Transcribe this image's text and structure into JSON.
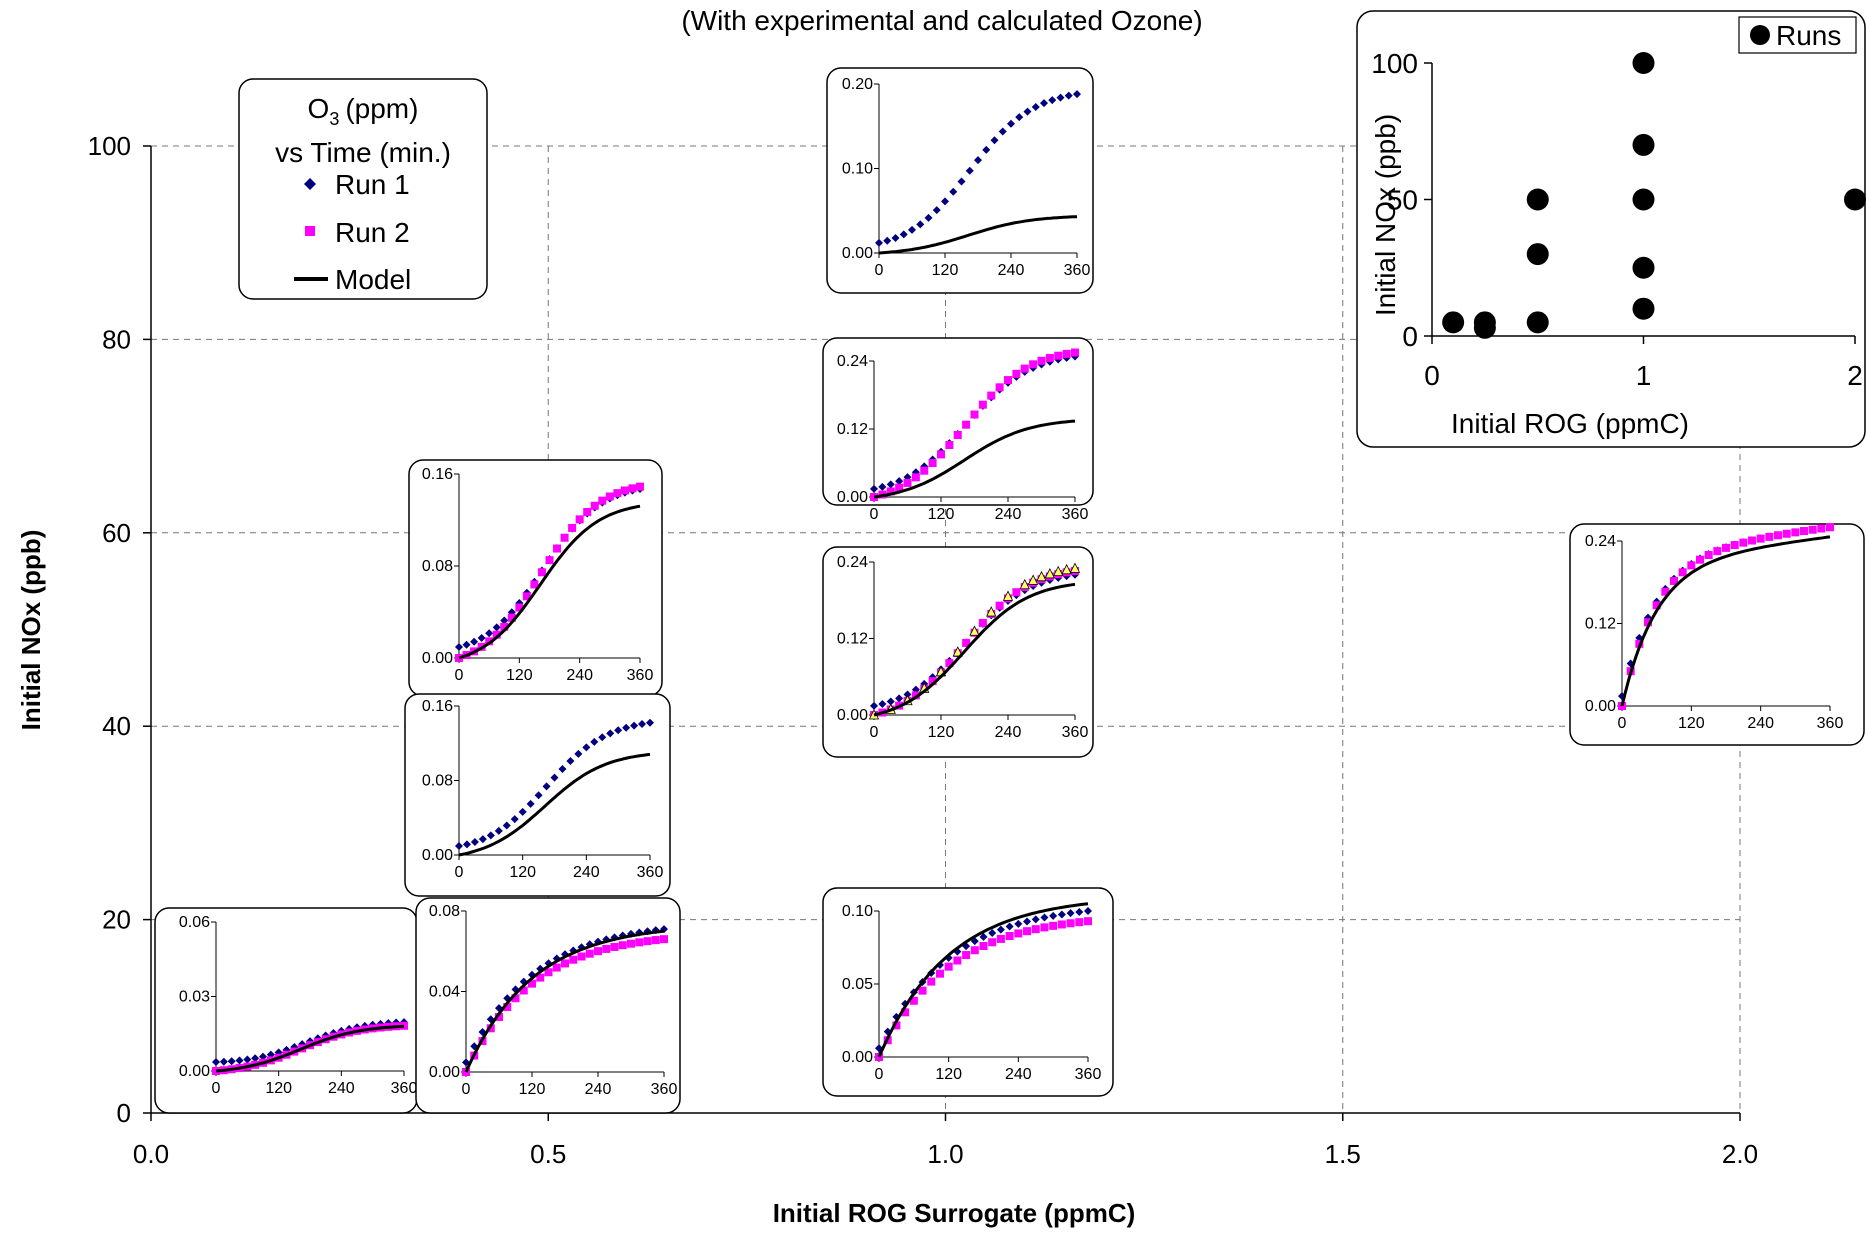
{
  "title": "(With experimental and calculated Ozone)",
  "legend": {
    "title_o3": "O",
    "title_sub": "3",
    "title_unit": "(ppm)",
    "title_line2": "vs Time (min.)",
    "entries": [
      {
        "name": "Run 1",
        "color": "#000080",
        "marker": "diamond"
      },
      {
        "name": "Run 2",
        "color": "#FF00FF",
        "marker": "square"
      },
      {
        "name": "Model",
        "color": "#000000",
        "marker": "line"
      }
    ]
  },
  "colors": {
    "run1": "#000080",
    "run2": "#FF00FF",
    "run3": "#FFFF66",
    "model": "#000000",
    "grid": "#777777"
  },
  "chart_data": [
    {
      "type": "scatter",
      "role": "main-experiment-grid",
      "xlabel": "Initial ROG Surrogate (ppmC)",
      "ylabel": "Initial NOx (ppb)",
      "xlim": [
        0,
        2
      ],
      "ylim": [
        0,
        100
      ],
      "xticks": [
        "0.0",
        "0.5",
        "1.0",
        "1.5",
        "2.0"
      ],
      "yticks": [
        "0",
        "20",
        "40",
        "60",
        "80",
        "100"
      ],
      "grid": true
    },
    {
      "type": "scatter",
      "role": "inset-runs",
      "xlabel": "Initial ROG (ppmC)",
      "ylabel": "Initial NOx (ppb)",
      "xlim": [
        0,
        2
      ],
      "ylim": [
        0,
        100
      ],
      "xticks": [
        "0",
        "1",
        "2"
      ],
      "yticks": [
        "0",
        "50",
        "100"
      ],
      "legend": "top-right",
      "series": [
        {
          "name": "Runs",
          "x": [
            0.1,
            0.25,
            0.25,
            0.5,
            0.5,
            0.5,
            1,
            1,
            1,
            1,
            1,
            2
          ],
          "y": [
            5,
            5,
            3,
            5,
            30,
            50,
            100,
            70,
            50,
            25,
            10,
            50
          ]
        }
      ]
    },
    {
      "type": "line",
      "role": "mini",
      "id": "m1",
      "xlim": [
        0,
        360
      ],
      "ylim": [
        0,
        0.06
      ],
      "xticks": [
        "0",
        "120",
        "240",
        "360"
      ],
      "yticks": [
        "0.00",
        "0.03",
        "0.06"
      ],
      "series": [
        {
          "name": "Run 1",
          "model_peak": 0.02,
          "shape": "sigmoid",
          "end": 0.0197
        },
        {
          "name": "Run 2",
          "shape": "sigmoid",
          "end": 0.0182
        },
        {
          "name": "Model",
          "shape": "sigmoid",
          "end": 0.018
        }
      ]
    },
    {
      "type": "line",
      "role": "mini",
      "id": "m2",
      "xlim": [
        0,
        360
      ],
      "ylim": [
        0,
        0.08
      ],
      "xticks": [
        "0",
        "120",
        "240",
        "360"
      ],
      "yticks": [
        "0.00",
        "0.04",
        "0.08"
      ],
      "series": [
        {
          "name": "Run 1",
          "shape": "saturating",
          "end": 0.071
        },
        {
          "name": "Run 2",
          "shape": "saturating",
          "end": 0.066
        },
        {
          "name": "Model",
          "shape": "saturating",
          "end": 0.07
        }
      ]
    },
    {
      "type": "line",
      "role": "mini",
      "id": "m3",
      "xlim": [
        0,
        360
      ],
      "ylim": [
        0,
        0.16
      ],
      "xticks": [
        "0",
        "120",
        "240",
        "360"
      ],
      "yticks": [
        "0.00",
        "0.08",
        "0.16"
      ],
      "series": [
        {
          "name": "Run 1",
          "shape": "sigmoid",
          "end": 0.147
        },
        {
          "name": "Run 2",
          "shape": "sigmoid",
          "end": 0.149
        },
        {
          "name": "Model",
          "shape": "sigmoid",
          "end": 0.132
        }
      ]
    },
    {
      "type": "line",
      "role": "mini",
      "id": "m4",
      "xlim": [
        0,
        360
      ],
      "ylim": [
        0,
        0.16
      ],
      "xticks": [
        "0",
        "120",
        "240",
        "360"
      ],
      "yticks": [
        "0.00",
        "0.08",
        "0.16"
      ],
      "series": [
        {
          "name": "Run 1",
          "shape": "sigmoid",
          "end": 0.142
        },
        {
          "name": "Model",
          "shape": "sigmoid",
          "end": 0.108
        }
      ]
    },
    {
      "type": "line",
      "role": "mini",
      "id": "m5",
      "xlim": [
        0,
        360
      ],
      "ylim": [
        0,
        0.1
      ],
      "xticks": [
        "0",
        "120",
        "240",
        "360"
      ],
      "yticks": [
        "0.00",
        "0.05",
        "0.10"
      ],
      "series": [
        {
          "name": "Run 1",
          "shape": "saturating",
          "end": 0.1
        },
        {
          "name": "Run 2",
          "shape": "saturating",
          "end": 0.093
        },
        {
          "name": "Model",
          "shape": "saturating",
          "end": 0.105
        }
      ]
    },
    {
      "type": "line",
      "role": "mini",
      "id": "m6",
      "xlim": [
        0,
        360
      ],
      "ylim": [
        0,
        0.24
      ],
      "xticks": [
        "0",
        "120",
        "240",
        "360"
      ],
      "yticks": [
        "0.00",
        "0.12",
        "0.24"
      ],
      "series": [
        {
          "name": "Run 1",
          "shape": "sigmoid",
          "end": 0.22
        },
        {
          "name": "Run 2",
          "shape": "sigmoid",
          "end": 0.226
        },
        {
          "name": "Run 3",
          "shape": "sigmoid",
          "end": 0.23
        },
        {
          "name": "Model",
          "shape": "sigmoid",
          "end": 0.205
        }
      ]
    },
    {
      "type": "line",
      "role": "mini",
      "id": "m7",
      "xlim": [
        0,
        360
      ],
      "ylim": [
        0,
        0.24
      ],
      "xticks": [
        "0",
        "120",
        "240",
        "360"
      ],
      "yticks": [
        "0.00",
        "0.12",
        "0.24"
      ],
      "series": [
        {
          "name": "Run 1",
          "shape": "sigmoid",
          "end": 0.248
        },
        {
          "name": "Run 2",
          "shape": "sigmoid",
          "end": 0.255
        },
        {
          "name": "Model",
          "shape": "sigmoid",
          "end": 0.134
        }
      ]
    },
    {
      "type": "line",
      "role": "mini",
      "id": "m8",
      "xlim": [
        0,
        360
      ],
      "ylim": [
        0,
        0.2
      ],
      "xticks": [
        "0",
        "120",
        "240",
        "360"
      ],
      "yticks": [
        "0.00",
        "0.10",
        "0.20"
      ],
      "series": [
        {
          "name": "Run 1",
          "shape": "sigmoid",
          "end": 0.188
        },
        {
          "name": "Model",
          "shape": "sigmoid",
          "end": 0.043
        }
      ]
    },
    {
      "type": "line",
      "role": "mini",
      "id": "m9",
      "xlim": [
        0,
        360
      ],
      "ylim": [
        0,
        0.24
      ],
      "xticks": [
        "0",
        "120",
        "240",
        "360"
      ],
      "yticks": [
        "0.00",
        "0.12",
        "0.24"
      ],
      "series": [
        {
          "name": "Run 1",
          "shape": "fast-saturating",
          "end": 0.26
        },
        {
          "name": "Run 2",
          "shape": "fast-saturating",
          "end": 0.26
        },
        {
          "name": "Model",
          "shape": "fast-saturating",
          "end": 0.246
        }
      ]
    }
  ]
}
